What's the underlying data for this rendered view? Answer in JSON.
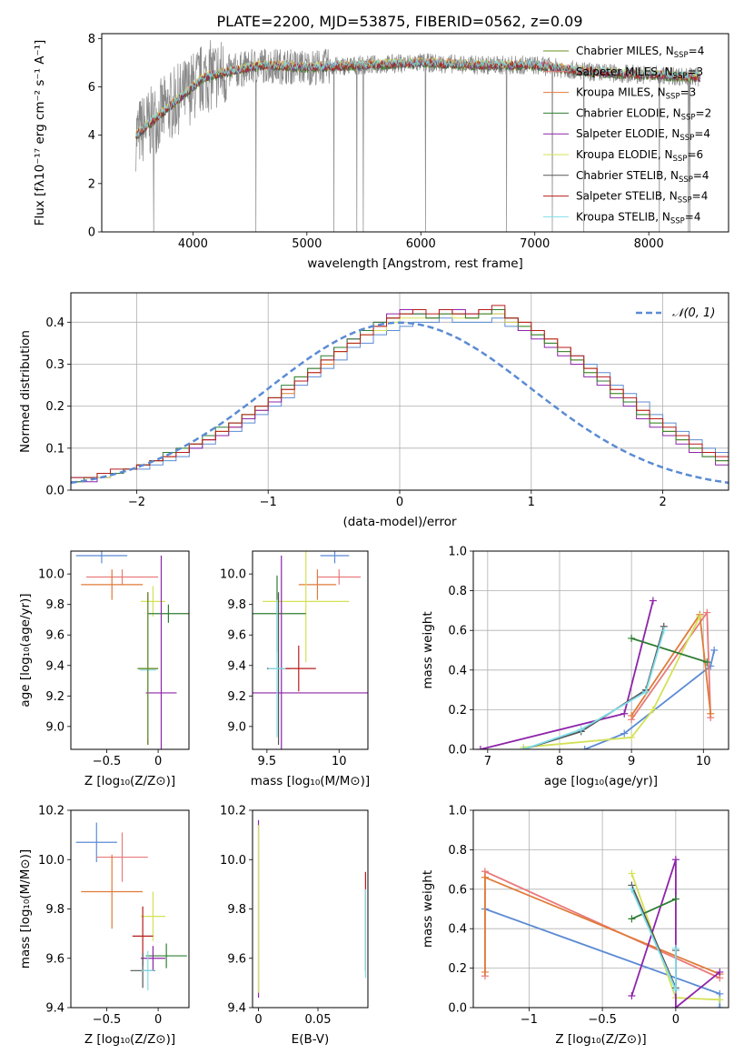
{
  "figure": {
    "title": "PLATE=2200, MJD=53875, FIBERID=0562, z=0.09"
  },
  "legend_colors": [
    "#6b8e23",
    "#e87a7a",
    "#e07b39",
    "#2e7d32",
    "#8e24aa",
    "#d4e157",
    "#555555",
    "#b71c1c",
    "#80deea"
  ],
  "chart_data": [
    {
      "id": "spectrum",
      "type": "line",
      "xlabel": "wavelength [Angstrom, rest frame]",
      "ylabel": "Flux [fλ10⁻¹⁷ erg cm⁻² s⁻¹ A⁻¹]",
      "xlim": [
        3200,
        8700
      ],
      "ylim": [
        0,
        8.2
      ],
      "xticks": [
        4000,
        5000,
        6000,
        7000,
        8000
      ],
      "yticks": [
        0,
        2,
        4,
        6,
        8
      ],
      "data_range": [
        3500,
        8450
      ],
      "observed_anchor_x": [
        3500,
        3700,
        3900,
        4100,
        4300,
        4600,
        5000,
        5500,
        6000,
        6500,
        7000,
        7500,
        8000,
        8450
      ],
      "observed_anchor_y": [
        4.0,
        4.8,
        5.6,
        6.4,
        6.6,
        6.9,
        6.8,
        6.9,
        7.0,
        6.9,
        6.9,
        6.6,
        6.5,
        6.4
      ],
      "legend": [
        {
          "label": "Chabrier MILES, N",
          "sub": "SSP",
          "suffix": "=4",
          "color": "#6b8e23"
        },
        {
          "label": "Salpeter MILES, N",
          "sub": "SSP",
          "suffix": "=3",
          "color": "#e87a7a"
        },
        {
          "label": "Kroupa MILES, N",
          "sub": "SSP",
          "suffix": "=3",
          "color": "#e07b39"
        },
        {
          "label": "Chabrier ELODIE, N",
          "sub": "SSP",
          "suffix": "=2",
          "color": "#2e7d32"
        },
        {
          "label": "Salpeter ELODIE, N",
          "sub": "SSP",
          "suffix": "=4",
          "color": "#8e24aa"
        },
        {
          "label": "Kroupa ELODIE, N",
          "sub": "SSP",
          "suffix": "=6",
          "color": "#d4e157"
        },
        {
          "label": "Chabrier STELIB, N",
          "sub": "SSP",
          "suffix": "=4",
          "color": "#555555"
        },
        {
          "label": "Salpeter STELIB, N",
          "sub": "SSP",
          "suffix": "=4",
          "color": "#b71c1c"
        },
        {
          "label": "Kroupa STELIB, N",
          "sub": "SSP",
          "suffix": "=4",
          "color": "#80deea"
        }
      ]
    },
    {
      "id": "residuals",
      "type": "histogram",
      "xlabel": "(data-model)/error",
      "ylabel": "Normed distribution",
      "xlim": [
        -2.5,
        2.5
      ],
      "ylim": [
        0,
        0.47
      ],
      "xticks": [
        -2,
        -1,
        0,
        1,
        2
      ],
      "yticks": [
        0.0,
        0.1,
        0.2,
        0.3,
        0.4
      ],
      "bin_width": 0.1,
      "grid": true,
      "reference_label": "𝒩(0, 1)",
      "reference_color": "#5b8bd4",
      "series": [
        {
          "color": "#5b8bd4",
          "values": [
            0.03,
            0.03,
            0.03,
            0.04,
            0.05,
            0.05,
            0.06,
            0.07,
            0.08,
            0.1,
            0.11,
            0.13,
            0.14,
            0.16,
            0.18,
            0.2,
            0.22,
            0.25,
            0.27,
            0.29,
            0.31,
            0.34,
            0.35,
            0.37,
            0.38,
            0.39,
            0.4,
            0.4,
            0.41,
            0.4,
            0.4,
            0.4,
            0.41,
            0.39,
            0.38,
            0.37,
            0.35,
            0.34,
            0.32,
            0.3,
            0.28,
            0.25,
            0.23,
            0.21,
            0.18,
            0.16,
            0.14,
            0.12,
            0.1,
            0.09
          ]
        },
        {
          "color": "#e07b39",
          "values": [
            0.02,
            0.03,
            0.04,
            0.04,
            0.05,
            0.06,
            0.07,
            0.08,
            0.09,
            0.11,
            0.12,
            0.14,
            0.15,
            0.17,
            0.19,
            0.21,
            0.23,
            0.26,
            0.28,
            0.3,
            0.33,
            0.35,
            0.37,
            0.39,
            0.41,
            0.42,
            0.42,
            0.41,
            0.43,
            0.42,
            0.41,
            0.42,
            0.43,
            0.41,
            0.4,
            0.38,
            0.36,
            0.34,
            0.31,
            0.29,
            0.26,
            0.24,
            0.21,
            0.19,
            0.17,
            0.14,
            0.12,
            0.1,
            0.09,
            0.07
          ]
        },
        {
          "color": "#8e24aa",
          "values": [
            0.02,
            0.02,
            0.03,
            0.04,
            0.05,
            0.06,
            0.07,
            0.08,
            0.09,
            0.1,
            0.12,
            0.13,
            0.15,
            0.17,
            0.19,
            0.21,
            0.24,
            0.26,
            0.29,
            0.31,
            0.34,
            0.36,
            0.38,
            0.4,
            0.42,
            0.43,
            0.42,
            0.41,
            0.42,
            0.43,
            0.42,
            0.43,
            0.42,
            0.4,
            0.38,
            0.36,
            0.34,
            0.32,
            0.3,
            0.27,
            0.25,
            0.22,
            0.2,
            0.17,
            0.15,
            0.13,
            0.11,
            0.09,
            0.08,
            0.06
          ]
        },
        {
          "color": "#d4e157",
          "values": [
            0.02,
            0.03,
            0.03,
            0.04,
            0.05,
            0.06,
            0.07,
            0.08,
            0.1,
            0.11,
            0.13,
            0.14,
            0.16,
            0.18,
            0.2,
            0.22,
            0.24,
            0.27,
            0.29,
            0.31,
            0.33,
            0.35,
            0.37,
            0.38,
            0.4,
            0.41,
            0.41,
            0.41,
            0.42,
            0.41,
            0.41,
            0.42,
            0.42,
            0.4,
            0.39,
            0.37,
            0.35,
            0.33,
            0.31,
            0.28,
            0.26,
            0.23,
            0.21,
            0.18,
            0.16,
            0.14,
            0.12,
            0.1,
            0.08,
            0.07
          ]
        },
        {
          "color": "#2e7d32",
          "values": [
            0.02,
            0.03,
            0.04,
            0.04,
            0.05,
            0.06,
            0.07,
            0.09,
            0.1,
            0.11,
            0.13,
            0.15,
            0.16,
            0.18,
            0.2,
            0.22,
            0.25,
            0.27,
            0.29,
            0.32,
            0.34,
            0.36,
            0.38,
            0.4,
            0.41,
            0.42,
            0.42,
            0.41,
            0.42,
            0.42,
            0.41,
            0.42,
            0.43,
            0.41,
            0.39,
            0.37,
            0.35,
            0.33,
            0.31,
            0.28,
            0.26,
            0.23,
            0.21,
            0.18,
            0.16,
            0.14,
            0.12,
            0.1,
            0.08,
            0.07
          ]
        },
        {
          "color": "#b71c1c",
          "values": [
            0.03,
            0.03,
            0.04,
            0.05,
            0.05,
            0.06,
            0.07,
            0.08,
            0.09,
            0.11,
            0.12,
            0.14,
            0.16,
            0.18,
            0.2,
            0.22,
            0.24,
            0.26,
            0.28,
            0.31,
            0.33,
            0.35,
            0.37,
            0.39,
            0.41,
            0.42,
            0.43,
            0.42,
            0.43,
            0.42,
            0.42,
            0.43,
            0.44,
            0.41,
            0.4,
            0.38,
            0.36,
            0.34,
            0.32,
            0.29,
            0.27,
            0.24,
            0.22,
            0.19,
            0.17,
            0.15,
            0.13,
            0.11,
            0.09,
            0.08
          ]
        }
      ]
    },
    {
      "id": "age-vs-z",
      "type": "errorbar",
      "xlabel": "Z [log₁₀(Z/Z⊙)]",
      "ylabel": "age  [log₁₀(age/yr)]",
      "xlim": [
        -0.85,
        0.3
      ],
      "ylim": [
        8.85,
        10.15
      ],
      "xticks": [
        -0.5,
        0.0
      ],
      "yticks": [
        9.0,
        9.2,
        9.4,
        9.6,
        9.8,
        10.0
      ],
      "points": [
        {
          "x": -0.55,
          "y": 10.12,
          "xerr": 0.25,
          "yerr": 0.05,
          "color": "#5b8bd4"
        },
        {
          "x": -0.35,
          "y": 9.98,
          "xerr": 0.35,
          "yerr": 0.05,
          "color": "#e87a7a"
        },
        {
          "x": -0.45,
          "y": 9.93,
          "xerr": 0.3,
          "yerr": 0.1,
          "color": "#e07b39"
        },
        {
          "x": -0.05,
          "y": 9.82,
          "xerr": 0.12,
          "yerr": 0.1,
          "color": "#d4e157"
        },
        {
          "x": 0.1,
          "y": 9.74,
          "xerr": 0.2,
          "yerr": 0.06,
          "color": "#2e7d32"
        },
        {
          "x": -0.1,
          "y": 9.38,
          "xerr": 0.1,
          "yerr": 0.5,
          "color": "#555555"
        },
        {
          "x": -0.1,
          "y": 9.37,
          "xerr": 0.08,
          "yerr": 0.45,
          "color": "#80deea"
        },
        {
          "x": 0.03,
          "y": 9.22,
          "xerr": 0.15,
          "yerr": 0.9,
          "color": "#8e24aa"
        },
        {
          "x": -0.1,
          "y": 9.38,
          "xerr": 0.1,
          "yerr": 0.5,
          "color": "#6b8e23"
        }
      ]
    },
    {
      "id": "age-vs-mass",
      "type": "errorbar",
      "xlabel": "mass [log₁₀(M/M⊙)]",
      "ylabel": "",
      "xlim": [
        9.4,
        10.2
      ],
      "ylim": [
        8.85,
        10.15
      ],
      "xticks": [
        9.5,
        10.0
      ],
      "yticks": [
        9.0,
        9.2,
        9.4,
        9.6,
        9.8,
        10.0
      ],
      "points": [
        {
          "x": 9.97,
          "y": 10.12,
          "xerr": 0.1,
          "yerr": 0.05,
          "color": "#5b8bd4"
        },
        {
          "x": 10.0,
          "y": 9.98,
          "xerr": 0.15,
          "yerr": 0.05,
          "color": "#e87a7a"
        },
        {
          "x": 9.85,
          "y": 9.93,
          "xerr": 0.13,
          "yerr": 0.1,
          "color": "#e07b39"
        },
        {
          "x": 9.77,
          "y": 9.82,
          "xerr": 0.3,
          "yerr": 0.4,
          "color": "#d4e157"
        },
        {
          "x": 9.57,
          "y": 9.74,
          "xerr": 0.2,
          "yerr": 0.25,
          "color": "#2e7d32"
        },
        {
          "x": 9.58,
          "y": 9.38,
          "xerr": 0.08,
          "yerr": 0.5,
          "color": "#555555"
        },
        {
          "x": 9.6,
          "y": 9.22,
          "xerr": 0.6,
          "yerr": 0.9,
          "color": "#8e24aa"
        },
        {
          "x": 9.72,
          "y": 9.38,
          "xerr": 0.12,
          "yerr": 0.15,
          "color": "#b71c1c"
        },
        {
          "x": 9.57,
          "y": 9.38,
          "xerr": 0.06,
          "yerr": 0.45,
          "color": "#80deea"
        }
      ]
    },
    {
      "id": "weight-vs-age",
      "type": "line",
      "xlabel": "age  [log₁₀(age/yr)]",
      "ylabel": "mass weight",
      "xlim": [
        6.8,
        10.35
      ],
      "ylim": [
        0,
        1.0
      ],
      "xticks": [
        7,
        8,
        9,
        10
      ],
      "yticks": [
        0.0,
        0.2,
        0.4,
        0.6,
        0.8,
        1.0
      ],
      "grid": true,
      "series": [
        {
          "color": "#5b8bd4",
          "x": [
            8.35,
            8.9,
            10.1,
            10.15
          ],
          "y": [
            0.0,
            0.08,
            0.42,
            0.5
          ]
        },
        {
          "color": "#e87a7a",
          "x": [
            9.0,
            10.05,
            10.1
          ],
          "y": [
            0.15,
            0.69,
            0.16
          ]
        },
        {
          "color": "#e07b39",
          "x": [
            9.0,
            9.95,
            10.1
          ],
          "y": [
            0.17,
            0.68,
            0.18
          ]
        },
        {
          "color": "#d4e157",
          "x": [
            7.5,
            9.0,
            9.3,
            9.95
          ],
          "y": [
            0.01,
            0.06,
            0.2,
            0.67
          ]
        },
        {
          "color": "#8e24aa",
          "x": [
            6.9,
            8.9,
            9.3
          ],
          "y": [
            0.0,
            0.18,
            0.75
          ]
        },
        {
          "color": "#2e7d32",
          "x": [
            9.0,
            10.05
          ],
          "y": [
            0.56,
            0.44
          ]
        },
        {
          "color": "#555555",
          "x": [
            7.5,
            8.3,
            9.2,
            9.45
          ],
          "y": [
            0.0,
            0.09,
            0.3,
            0.62
          ]
        },
        {
          "color": "#80deea",
          "x": [
            7.5,
            8.3,
            9.2,
            9.45
          ],
          "y": [
            0.0,
            0.1,
            0.29,
            0.6
          ]
        }
      ]
    },
    {
      "id": "mass-vs-z",
      "type": "errorbar",
      "xlabel": "Z [log₁₀(Z/Z⊙)]",
      "ylabel": "mass [log₁₀(M/M⊙)]",
      "xlim": [
        -0.85,
        0.3
      ],
      "ylim": [
        9.4,
        10.2
      ],
      "xticks": [
        -0.5,
        0.0
      ],
      "yticks": [
        9.4,
        9.6,
        9.8,
        10.0,
        10.2
      ],
      "points": [
        {
          "x": -0.6,
          "y": 10.07,
          "xerr": 0.2,
          "yerr": 0.08,
          "color": "#5b8bd4"
        },
        {
          "x": -0.35,
          "y": 10.01,
          "xerr": 0.25,
          "yerr": 0.1,
          "color": "#e87a7a"
        },
        {
          "x": -0.45,
          "y": 9.87,
          "xerr": 0.3,
          "yerr": 0.15,
          "color": "#e07b39"
        },
        {
          "x": -0.05,
          "y": 9.77,
          "xerr": 0.12,
          "yerr": 0.1,
          "color": "#d4e157"
        },
        {
          "x": -0.15,
          "y": 9.69,
          "xerr": 0.1,
          "yerr": 0.12,
          "color": "#b71c1c"
        },
        {
          "x": 0.08,
          "y": 9.61,
          "xerr": 0.2,
          "yerr": 0.05,
          "color": "#2e7d32"
        },
        {
          "x": -0.05,
          "y": 9.6,
          "xerr": 0.12,
          "yerr": 0.05,
          "color": "#8e24aa"
        },
        {
          "x": -0.15,
          "y": 9.55,
          "xerr": 0.12,
          "yerr": 0.07,
          "color": "#555555"
        },
        {
          "x": -0.1,
          "y": 9.55,
          "xerr": 0.06,
          "yerr": 0.08,
          "color": "#80deea"
        }
      ]
    },
    {
      "id": "mass-vs-ebv",
      "type": "errorbar",
      "xlabel": "E(B-V)",
      "ylabel": "",
      "xlim": [
        -0.005,
        0.092
      ],
      "ylim": [
        9.4,
        10.2
      ],
      "xticks": [
        0.0,
        0.05
      ],
      "yticks": [
        9.4,
        9.6,
        9.8,
        10.0,
        10.2
      ],
      "points": [
        {
          "x": 0.0,
          "y": 9.8,
          "xerr": 0.0,
          "yerr": 0.36,
          "color": "#8e24aa"
        },
        {
          "x": 0.0,
          "y": 9.8,
          "xerr": 0.0,
          "yerr": 0.34,
          "color": "#d4e157"
        },
        {
          "x": 0.09,
          "y": 9.75,
          "xerr": 0.0,
          "yerr": 0.2,
          "color": "#b71c1c"
        },
        {
          "x": 0.09,
          "y": 9.7,
          "xerr": 0.0,
          "yerr": 0.18,
          "color": "#80deea"
        }
      ]
    },
    {
      "id": "weight-vs-z",
      "type": "line",
      "xlabel": "Z [log₁₀(Z/Z⊙)]",
      "ylabel": "mass weight",
      "xlim": [
        -1.38,
        0.36
      ],
      "ylim": [
        0,
        1.0
      ],
      "xticks": [
        -1.0,
        -0.5,
        0.0
      ],
      "yticks": [
        0.0,
        0.2,
        0.4,
        0.6,
        0.8,
        1.0
      ],
      "grid": true,
      "series": [
        {
          "color": "#5b8bd4",
          "x": [
            -1.3,
            0.3,
            0.3
          ],
          "y": [
            0.5,
            0.07,
            0.0
          ]
        },
        {
          "color": "#e87a7a",
          "x": [
            -1.3,
            -1.3,
            0.3
          ],
          "y": [
            0.16,
            0.69,
            0.15
          ]
        },
        {
          "color": "#e07b39",
          "x": [
            -1.3,
            -1.3,
            0.3
          ],
          "y": [
            0.18,
            0.66,
            0.17
          ]
        },
        {
          "color": "#d4e157",
          "x": [
            -0.3,
            0.0,
            0.3
          ],
          "y": [
            0.68,
            0.05,
            0.04
          ]
        },
        {
          "color": "#8e24aa",
          "x": [
            -0.3,
            0.0,
            0.0,
            0.3
          ],
          "y": [
            0.06,
            0.75,
            0.0,
            0.18
          ]
        },
        {
          "color": "#2e7d32",
          "x": [
            -0.3,
            0.0
          ],
          "y": [
            0.45,
            0.55
          ]
        },
        {
          "color": "#555555",
          "x": [
            -0.3,
            0.0,
            0.0
          ],
          "y": [
            0.62,
            0.1,
            0.29
          ]
        },
        {
          "color": "#80deea",
          "x": [
            -0.3,
            0.0,
            0.0
          ],
          "y": [
            0.6,
            0.09,
            0.3
          ]
        }
      ]
    }
  ]
}
